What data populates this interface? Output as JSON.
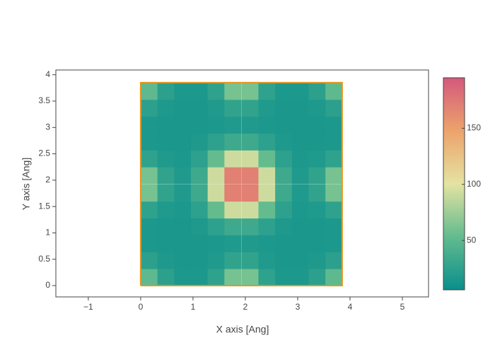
{
  "chart_data": {
    "type": "heatmap",
    "x_label": "X axis [Ang]",
    "y_label": "Y axis [Ang]",
    "x": [
      0.16,
      0.48,
      0.8,
      1.12,
      1.44,
      1.76,
      2.09,
      2.41,
      2.73,
      3.05,
      3.37,
      3.69
    ],
    "y": [
      0.16,
      0.48,
      0.8,
      1.12,
      1.44,
      1.76,
      2.09,
      2.41,
      2.73,
      3.05,
      3.37,
      3.69
    ],
    "z": [
      [
        51,
        24,
        16,
        16,
        26,
        61,
        61,
        26,
        16,
        16,
        24,
        51
      ],
      [
        24,
        17,
        15,
        15,
        18,
        27,
        27,
        18,
        15,
        15,
        17,
        24
      ],
      [
        16,
        15,
        15,
        15,
        16,
        18,
        18,
        16,
        15,
        15,
        15,
        16
      ],
      [
        16,
        15,
        15,
        17,
        25,
        34,
        34,
        25,
        17,
        15,
        15,
        16
      ],
      [
        26,
        18,
        16,
        25,
        54,
        92,
        92,
        54,
        25,
        16,
        18,
        26
      ],
      [
        61,
        27,
        18,
        34,
        92,
        170,
        170,
        92,
        34,
        18,
        27,
        61
      ],
      [
        61,
        27,
        18,
        34,
        92,
        170,
        170,
        92,
        34,
        18,
        27,
        61
      ],
      [
        26,
        18,
        16,
        25,
        54,
        92,
        92,
        54,
        25,
        16,
        18,
        26
      ],
      [
        16,
        15,
        15,
        17,
        25,
        34,
        34,
        25,
        17,
        15,
        15,
        16
      ],
      [
        16,
        15,
        15,
        15,
        16,
        18,
        18,
        16,
        15,
        15,
        15,
        16
      ],
      [
        24,
        17,
        15,
        15,
        18,
        27,
        27,
        18,
        15,
        15,
        17,
        24
      ],
      [
        51,
        24,
        16,
        16,
        26,
        61,
        61,
        26,
        16,
        16,
        24,
        51
      ]
    ],
    "zlim": [
      6,
      195
    ],
    "zticks": [
      50,
      100,
      150
    ],
    "colorscale": [
      [
        0,
        "#0a8f8c"
      ],
      [
        0.25,
        "#62bb8e"
      ],
      [
        0.5,
        "#e4e3a2"
      ],
      [
        0.75,
        "#eca36b"
      ],
      [
        1,
        "#d4597d"
      ]
    ],
    "outline": {
      "color": "#e8951f",
      "x": [
        0,
        3.85,
        3.85,
        0,
        0
      ],
      "y": [
        0,
        0,
        3.85,
        3.85,
        0
      ]
    },
    "xlim": [
      -1.62,
      5.5
    ],
    "xticks": [
      {
        "value": -1,
        "label": "−1"
      },
      0,
      1,
      2,
      3,
      4,
      5
    ],
    "ylim": [
      -0.215,
      4.09
    ],
    "yticks": [
      0,
      0.5,
      1,
      1.5,
      2,
      2.5,
      3,
      3.5,
      4
    ]
  }
}
